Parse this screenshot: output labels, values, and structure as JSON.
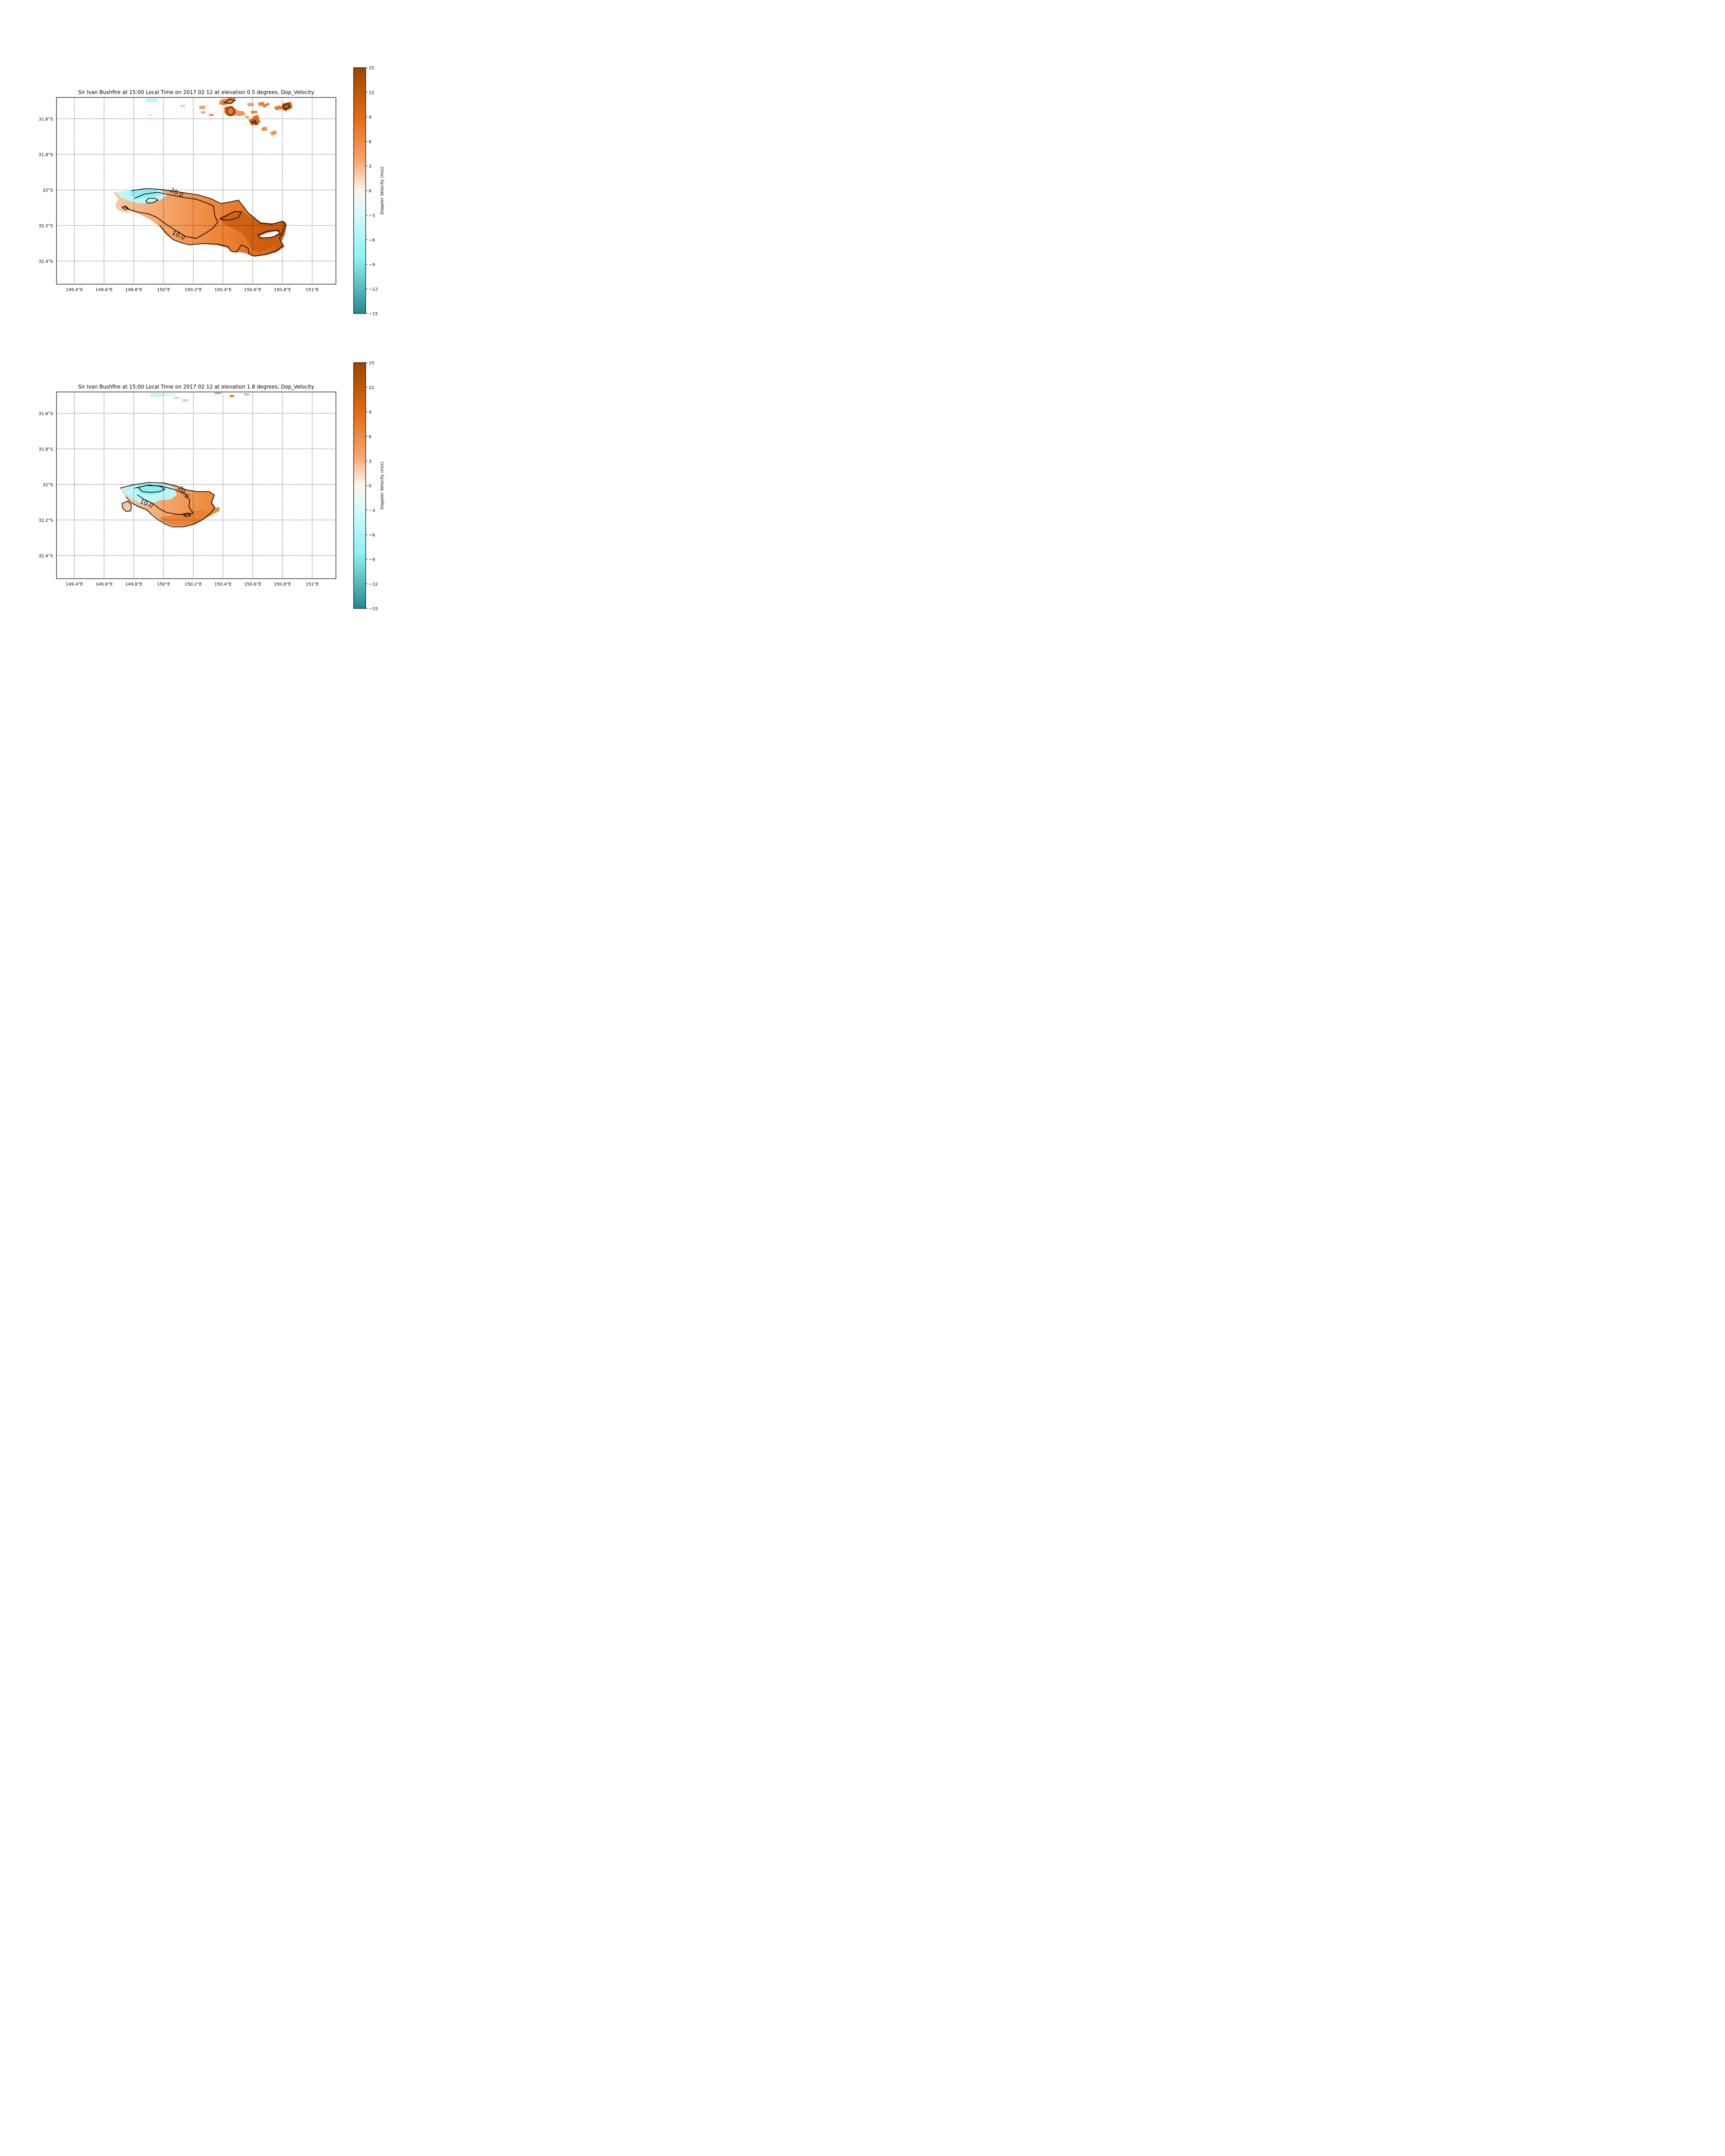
{
  "colors": {
    "pos_high": "#a24a06",
    "pos_mid": "#f08a3a",
    "neutral": "#fff7f0",
    "neg_mid": "#9ff3f5",
    "neg_high": "#2e9298",
    "contour": "#000000",
    "grid": "#000000"
  },
  "chart_data": [
    {
      "type": "heatmap",
      "title": "Sir Ivan Bushfire at 15:00 Local Time on 2017 02 12 at elevation 0.5 degrees, Dop_Velocity",
      "xlabel": "",
      "ylabel": "",
      "lon_range": [
        149.28,
        151.16
      ],
      "lat_range": [
        -32.53,
        -31.48
      ],
      "x_ticks": [
        149.4,
        149.6,
        149.8,
        150.0,
        150.2,
        150.4,
        150.6,
        150.8,
        151.0
      ],
      "x_tick_labels": [
        "149.4°E",
        "149.6°E",
        "149.8°E",
        "150°E",
        "150.2°E",
        "150.4°E",
        "150.6°E",
        "150.8°E",
        "151°E"
      ],
      "y_ticks": [
        -31.6,
        -31.8,
        -32.0,
        -32.2,
        -32.4
      ],
      "y_tick_labels": [
        "31.6°S",
        "31.8°S",
        "32°S",
        "32.2°S",
        "32.4°S"
      ],
      "grid": true,
      "colorbar": {
        "label": "Doppler Velocity (m/s)",
        "range": [
          -15,
          15
        ],
        "ticks": [
          15,
          12,
          9,
          6,
          3,
          0,
          -3,
          -6,
          -9,
          -12,
          -15
        ],
        "tick_labels": [
          "15",
          "12",
          "9",
          "6",
          "3",
          "0",
          "−3",
          "−6",
          "−9",
          "−12",
          "−15"
        ]
      },
      "contour_labels": [
        "20.0",
        "10.0"
      ]
    },
    {
      "type": "heatmap",
      "title": "Sir Ivan Bushfire at 15:00 Local Time on 2017 02 12 at elevation 1.8 degrees, Dop_Velocity",
      "xlabel": "",
      "ylabel": "",
      "lon_range": [
        149.28,
        151.16
      ],
      "lat_range": [
        -32.53,
        -31.48
      ],
      "x_ticks": [
        149.4,
        149.6,
        149.8,
        150.0,
        150.2,
        150.4,
        150.6,
        150.8,
        151.0
      ],
      "x_tick_labels": [
        "149.4°E",
        "149.6°E",
        "149.8°E",
        "150°E",
        "150.2°E",
        "150.4°E",
        "150.6°E",
        "150.8°E",
        "151°E"
      ],
      "y_ticks": [
        -31.6,
        -31.8,
        -32.0,
        -32.2,
        -32.4
      ],
      "y_tick_labels": [
        "31.6°S",
        "31.8°S",
        "32°S",
        "32.2°S",
        "32.4°S"
      ],
      "grid": true,
      "colorbar": {
        "label": "Doppler Velocity (m/s)",
        "range": [
          -15,
          15
        ],
        "ticks": [
          15,
          12,
          9,
          6,
          3,
          0,
          -3,
          -6,
          -9,
          -12,
          -15
        ],
        "tick_labels": [
          "15",
          "12",
          "9",
          "6",
          "3",
          "0",
          "−3",
          "−6",
          "−9",
          "−12",
          "−15"
        ]
      },
      "contour_labels": [
        "20.0",
        "10.0"
      ]
    }
  ]
}
